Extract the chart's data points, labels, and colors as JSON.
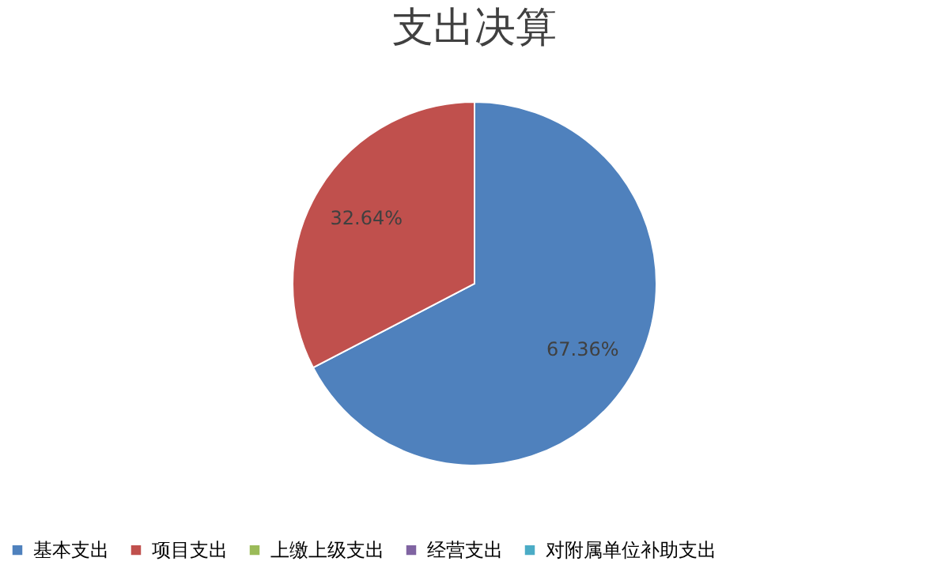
{
  "chart_data": {
    "type": "pie",
    "title": "支出决算",
    "categories": [
      "基本支出",
      "项目支出",
      "上缴上级支出",
      "经营支出",
      "对附属单位补助支出"
    ],
    "values": [
      67.36,
      32.64,
      0,
      0,
      0
    ],
    "colors": [
      "#4f81bd",
      "#c0504d",
      "#9bbb59",
      "#8064a2",
      "#4bacc6"
    ],
    "value_labels": [
      "67.36%",
      "32.64%",
      null,
      null,
      null
    ],
    "legend": "bottom"
  }
}
